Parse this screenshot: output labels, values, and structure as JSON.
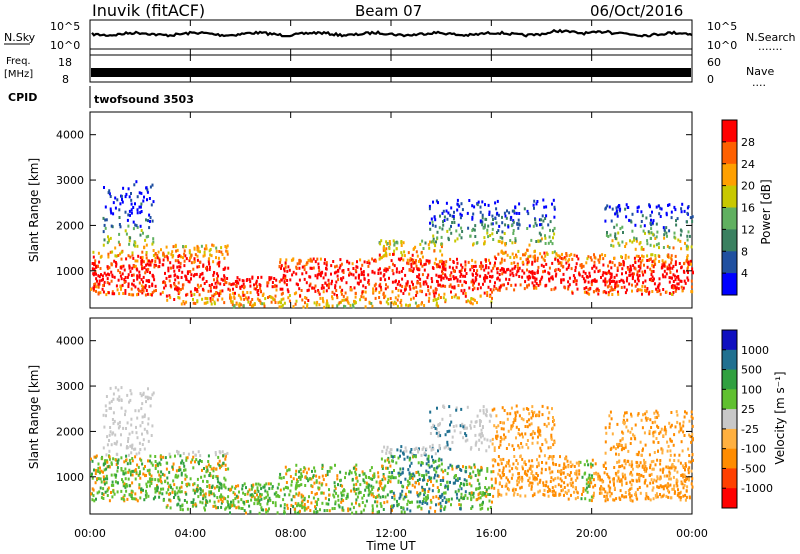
{
  "header": {
    "station": "Inuvik (fitACF)",
    "beam": "Beam 07",
    "date": "06/Oct/2016"
  },
  "panels": {
    "nsky_label": "N.Sky",
    "nsearch_label": "N.Search",
    "nsearch_marker": ".......",
    "freq_label_1": "Freq.",
    "freq_label_2": "[MHz]",
    "nave_label": "Nave",
    "nave_marker": "....",
    "cpid_label": "CPID",
    "cpid_value": "twofsound 3503"
  },
  "colors": {
    "power": [
      "#0000ff",
      "#2050a0",
      "#3a8060",
      "#60b060",
      "#c8c800",
      "#ffa000",
      "#ff6000",
      "#ff0000"
    ],
    "velocity": [
      "#ff0000",
      "#ff4000",
      "#ff8c00",
      "#ffb040",
      "#c8c8c8",
      "#60c030",
      "#30a040",
      "#207090",
      "#1010c0"
    ]
  },
  "chart_data": [
    {
      "type": "line",
      "name": "N.Sky / N.Search",
      "left_ticks": [
        "10^5",
        "10^0"
      ],
      "right_ticks": [
        "10^5",
        "10^0"
      ],
      "description_level": "noise"
    },
    {
      "type": "line",
      "name": "Freq / Nave",
      "left_ticks": [
        "18",
        "8"
      ],
      "right_ticks": [
        "60",
        "0"
      ],
      "freq_mhz_approx": 11
    },
    {
      "type": "heatmap",
      "ylabel": "Slant Range [km]",
      "yticks": [
        1000,
        2000,
        3000,
        4000
      ],
      "ylim": [
        180,
        4500
      ],
      "colorbar": {
        "label": "Power [dB]",
        "ticks": [
          "28",
          "24",
          "20",
          "16",
          "12",
          "8",
          "4"
        ]
      }
    },
    {
      "type": "heatmap",
      "ylabel": "Slant Range [km]",
      "yticks": [
        1000,
        2000,
        3000,
        4000
      ],
      "ylim": [
        180,
        4500
      ],
      "xlabel": "Time UT",
      "xticks": [
        "00:00",
        "04:00",
        "08:00",
        "12:00",
        "16:00",
        "20:00",
        "00:00"
      ],
      "colorbar": {
        "label": "Velocity [m s⁻¹]",
        "ticks": [
          "1000",
          "500",
          "100",
          "25",
          "-25",
          "-100",
          "-500",
          "-1000"
        ]
      }
    }
  ]
}
